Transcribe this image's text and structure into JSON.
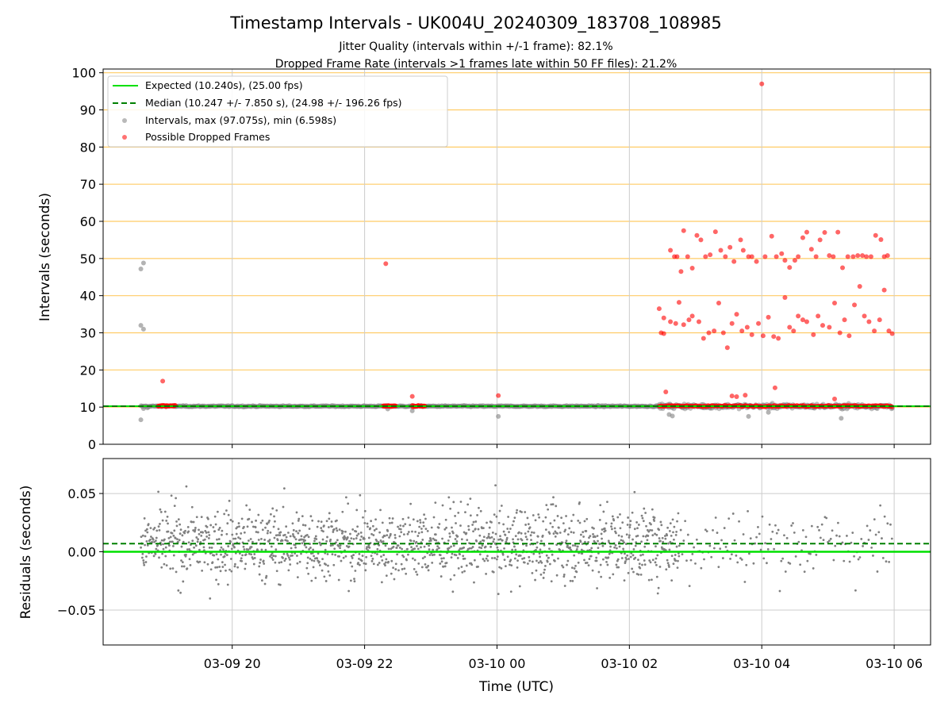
{
  "chart_data": {
    "title": "Timestamp Intervals - UK004U_20240309_183708_108985",
    "subtitle_lines": [
      "Jitter Quality (intervals within +/-1 frame): 82.1%",
      "Dropped Frame Rate (intervals >1 frames late within 50 FF files): 21.2%"
    ],
    "xlabel": "Time (UTC)",
    "x_ticks": [
      "03-09 20",
      "03-09 22",
      "03-10 00",
      "03-10 02",
      "03-10 04",
      "03-10 06"
    ],
    "x_range_hours": [
      18.05,
      30.55
    ],
    "x_tick_hours": [
      20,
      22,
      24,
      26,
      28,
      30
    ],
    "grid": true,
    "colors": {
      "expected": "#00e000",
      "median": "#008000",
      "intervals": "#808080",
      "dropped": "#ff0000",
      "hgrid": "#ffcc66",
      "grid": "#cccccc"
    },
    "panels": [
      {
        "type": "scatter",
        "ylabel": "Intervals (seconds)",
        "ylim": [
          0,
          101
        ],
        "y_ticks": [
          "0",
          "10",
          "20",
          "30",
          "40",
          "50",
          "60",
          "70",
          "80",
          "90",
          "100"
        ],
        "y_tick_values": [
          0,
          10,
          20,
          30,
          40,
          50,
          60,
          70,
          80,
          90,
          100
        ],
        "legend_position": "top-left",
        "expected": 10.24,
        "median": 10.247,
        "legend": [
          "Expected (10.240s), (25.00 fps)",
          "Median (10.247 +/- 7.850 s), (24.98 +/- 196.26 fps)",
          "Intervals, max (97.075s), min (6.598s)",
          "Possible Dropped Frames"
        ],
        "intervals_outliers": [
          [
            18.62,
            6.6
          ],
          [
            18.62,
            47.2
          ],
          [
            18.66,
            48.8
          ],
          [
            18.62,
            32
          ],
          [
            18.66,
            31
          ],
          [
            18.66,
            9.6
          ],
          [
            18.72,
            9.8
          ],
          [
            24.02,
            7.5
          ],
          [
            22.72,
            9.0
          ],
          [
            22.35,
            9.5
          ],
          [
            26.6,
            8.0
          ],
          [
            26.65,
            7.6
          ],
          [
            27.8,
            7.5
          ],
          [
            28.1,
            8.6
          ],
          [
            29.2,
            7.0
          ]
        ],
        "dropped_points": [
          [
            18.95,
            17.0
          ],
          [
            22.32,
            48.6
          ],
          [
            22.72,
            12.9
          ],
          [
            24.02,
            13.1
          ],
          [
            26.55,
            14.1
          ],
          [
            26.45,
            36.5
          ],
          [
            26.48,
            30
          ],
          [
            26.52,
            29.8
          ],
          [
            26.62,
            52.2
          ],
          [
            26.68,
            50.5
          ],
          [
            26.72,
            50.5
          ],
          [
            26.78,
            46.5
          ],
          [
            26.82,
            57.5
          ],
          [
            26.88,
            50.5
          ],
          [
            26.95,
            47.4
          ],
          [
            27.02,
            56.2
          ],
          [
            27.08,
            55.0
          ],
          [
            27.15,
            50.5
          ],
          [
            27.22,
            51.0
          ],
          [
            27.3,
            57.2
          ],
          [
            27.38,
            52.2
          ],
          [
            27.45,
            50.5
          ],
          [
            27.52,
            53.0
          ],
          [
            27.58,
            49.2
          ],
          [
            27.68,
            55.0
          ],
          [
            27.72,
            52.2
          ],
          [
            27.8,
            50.5
          ],
          [
            27.85,
            50.5
          ],
          [
            27.92,
            49.2
          ],
          [
            28.0,
            97.0
          ],
          [
            28.05,
            50.5
          ],
          [
            28.15,
            56.0
          ],
          [
            28.22,
            50.5
          ],
          [
            28.3,
            51.3
          ],
          [
            28.35,
            49.5
          ],
          [
            28.42,
            47.6
          ],
          [
            28.5,
            49.5
          ],
          [
            28.55,
            50.5
          ],
          [
            28.62,
            55.6
          ],
          [
            28.68,
            57.1
          ],
          [
            28.75,
            52.5
          ],
          [
            28.82,
            50.5
          ],
          [
            28.88,
            55.0
          ],
          [
            28.95,
            57.0
          ],
          [
            29.02,
            50.8
          ],
          [
            29.08,
            50.5
          ],
          [
            29.15,
            57.1
          ],
          [
            29.22,
            47.5
          ],
          [
            29.3,
            50.5
          ],
          [
            29.38,
            50.5
          ],
          [
            29.45,
            50.8
          ],
          [
            29.52,
            50.8
          ],
          [
            29.58,
            50.5
          ],
          [
            29.65,
            50.5
          ],
          [
            29.72,
            56.2
          ],
          [
            29.8,
            55.1
          ],
          [
            29.85,
            50.5
          ],
          [
            29.9,
            50.8
          ],
          [
            26.52,
            34.0
          ],
          [
            26.62,
            33.0
          ],
          [
            26.7,
            32.5
          ],
          [
            26.75,
            38.2
          ],
          [
            26.82,
            32.2
          ],
          [
            26.9,
            33.5
          ],
          [
            26.95,
            34.5
          ],
          [
            27.05,
            33.0
          ],
          [
            27.12,
            28.5
          ],
          [
            27.2,
            30.0
          ],
          [
            27.28,
            30.5
          ],
          [
            27.35,
            38.0
          ],
          [
            27.42,
            30.0
          ],
          [
            27.48,
            26.0
          ],
          [
            27.55,
            32.5
          ],
          [
            27.62,
            35.0
          ],
          [
            27.7,
            30.5
          ],
          [
            27.78,
            31.5
          ],
          [
            27.85,
            29.5
          ],
          [
            27.95,
            32.5
          ],
          [
            28.02,
            29.2
          ],
          [
            28.1,
            34.2
          ],
          [
            28.18,
            29.0
          ],
          [
            28.25,
            28.5
          ],
          [
            28.35,
            39.5
          ],
          [
            28.42,
            31.5
          ],
          [
            28.48,
            30.5
          ],
          [
            28.55,
            34.5
          ],
          [
            28.62,
            33.5
          ],
          [
            28.68,
            33.0
          ],
          [
            28.78,
            29.5
          ],
          [
            28.85,
            34.5
          ],
          [
            28.92,
            32.0
          ],
          [
            29.02,
            31.5
          ],
          [
            29.1,
            38.0
          ],
          [
            29.18,
            30.0
          ],
          [
            29.25,
            33.5
          ],
          [
            29.32,
            29.2
          ],
          [
            29.4,
            37.5
          ],
          [
            29.48,
            42.5
          ],
          [
            29.55,
            34.5
          ],
          [
            29.62,
            33.0
          ],
          [
            29.7,
            30.5
          ],
          [
            29.78,
            33.5
          ],
          [
            29.85,
            41.5
          ],
          [
            29.92,
            30.5
          ],
          [
            29.97,
            29.8
          ],
          [
            27.55,
            13.0
          ],
          [
            27.62,
            12.8
          ],
          [
            27.75,
            13.2
          ],
          [
            28.2,
            15.2
          ],
          [
            29.1,
            12.2
          ]
        ]
      },
      {
        "type": "scatter",
        "ylabel": "Residuals (seconds)",
        "ylim": [
          -0.08,
          0.08
        ],
        "y_ticks": [
          "−0.05",
          "0.00",
          "0.05"
        ],
        "y_tick_values": [
          -0.05,
          0,
          0.05
        ],
        "expected": 0,
        "median": 0.007,
        "residual_spread": 0.022,
        "dense_until_hour": 26.75
      }
    ]
  }
}
